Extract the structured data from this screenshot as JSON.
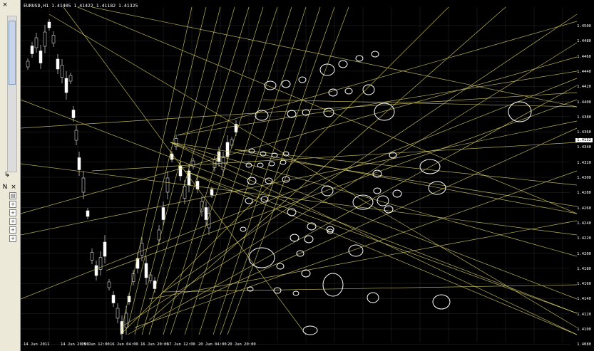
{
  "window": {
    "close_glyph": "×",
    "navigator_close_glyph": "×"
  },
  "chart": {
    "symbol_line": "EURUSD,H1  1.41405 1.41422 1.41182 1.41325",
    "current_price": "1.4132",
    "price_labels": [
      "1.4500",
      "1.4480",
      "1.4460",
      "1.4440",
      "1.4420",
      "1.4400",
      "1.4380",
      "1.4360",
      "1.4340",
      "1.4320",
      "1.4300",
      "1.4280",
      "1.4260",
      "1.4240",
      "1.4220",
      "1.4200",
      "1.4180",
      "1.4160",
      "1.4140",
      "1.4120",
      "1.4100",
      "1.4080"
    ],
    "time_labels": [
      "14 Jun 2011",
      "14 Jun 20:00",
      "15 Jun 12:00",
      "16 Jun 04:00",
      "16 Jun 20:00",
      "17 Jun 12:00",
      "20 Jun 04:00",
      "20 Jun 20:00"
    ],
    "colors": {
      "background": "#000000",
      "grid": "#2a2a2a",
      "lines": "#d8cf6a",
      "candles": "#ffffff",
      "annotations": "#ffffff"
    }
  }
}
